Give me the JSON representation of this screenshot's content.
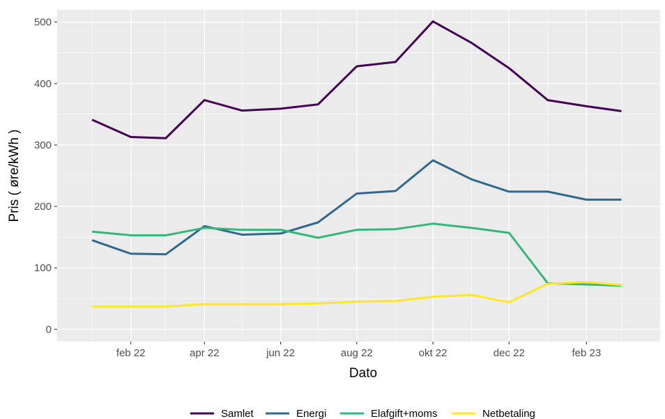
{
  "chart_data": {
    "type": "line",
    "xlabel": "Dato",
    "ylabel": "Pris ( øre/kWh )",
    "ylim": [
      -20,
      520
    ],
    "xlim": [
      "2021-12-04",
      "2023-04-01"
    ],
    "grid": true,
    "background": "#ebebeb",
    "legend_position": "bottom",
    "x": [
      "2022-01-01",
      "2022-02-01",
      "2022-03-01",
      "2022-04-01",
      "2022-05-01",
      "2022-06-01",
      "2022-07-01",
      "2022-08-01",
      "2022-09-01",
      "2022-10-01",
      "2022-11-01",
      "2022-12-01",
      "2023-01-01",
      "2023-02-01",
      "2023-03-01"
    ],
    "x_ticks": [
      {
        "date": "2022-02-01",
        "label": "feb 22"
      },
      {
        "date": "2022-04-01",
        "label": "apr 22"
      },
      {
        "date": "2022-06-01",
        "label": "jun 22"
      },
      {
        "date": "2022-08-01",
        "label": "aug 22"
      },
      {
        "date": "2022-10-01",
        "label": "okt 22"
      },
      {
        "date": "2022-12-01",
        "label": "dec 22"
      },
      {
        "date": "2023-02-01",
        "label": "feb 23"
      }
    ],
    "y_ticks": [
      0,
      100,
      200,
      300,
      400,
      500
    ],
    "series": [
      {
        "name": "Samlet",
        "color": "#440154",
        "values": [
          341,
          313,
          311,
          373,
          356,
          359,
          366,
          428,
          435,
          501,
          466,
          425,
          373,
          363,
          355
        ]
      },
      {
        "name": "Energi",
        "color": "#31688e",
        "values": [
          145,
          123,
          122,
          168,
          154,
          156,
          174,
          221,
          225,
          275,
          244,
          224,
          224,
          211,
          211
        ]
      },
      {
        "name": "Elafgift+moms",
        "color": "#35b779",
        "values": [
          159,
          153,
          153,
          165,
          162,
          162,
          149,
          162,
          163,
          172,
          165,
          157,
          75,
          73,
          71
        ]
      },
      {
        "name": "Netbetaling",
        "color": "#fde725",
        "values": [
          37,
          37,
          37,
          41,
          41,
          41,
          42,
          45,
          46,
          53,
          56,
          44,
          74,
          77,
          72
        ]
      }
    ]
  }
}
